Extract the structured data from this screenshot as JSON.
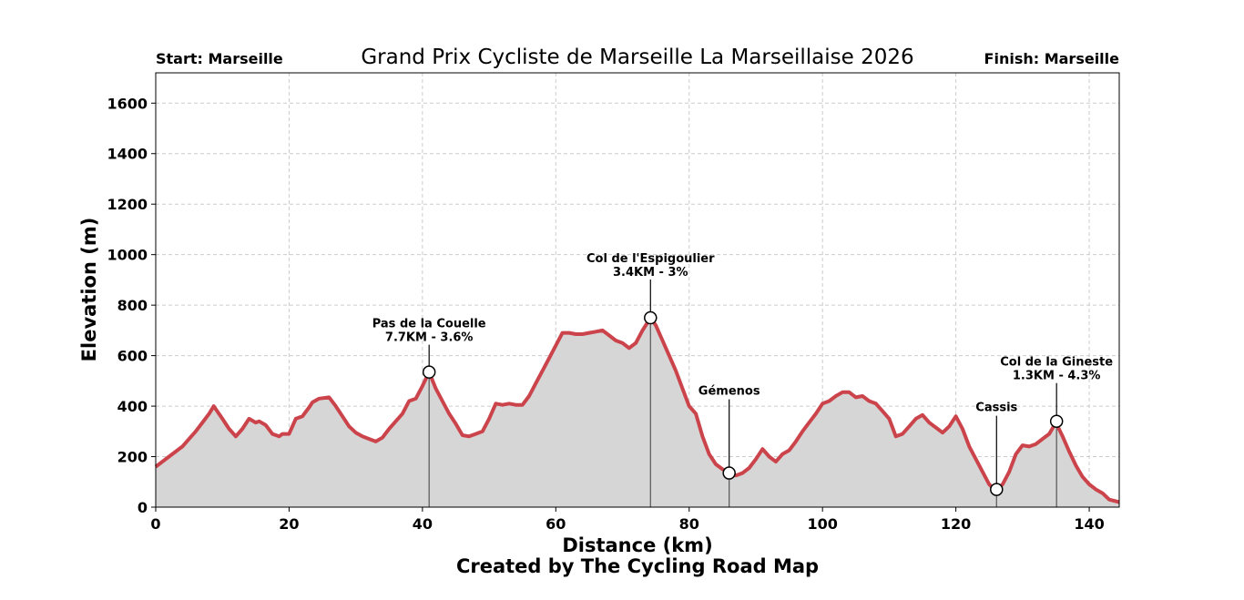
{
  "chart_data": {
    "type": "area",
    "title": "Grand Prix Cycliste de Marseille La Marseillaise 2026",
    "start_label": "Start: Marseille",
    "finish_label": "Finish: Marseille",
    "xlabel": "Distance (km)",
    "ylabel": "Elevation (m)",
    "caption": "Created by The Cycling Road Map",
    "xlim": [
      0,
      144.5
    ],
    "ylim": [
      0,
      1720
    ],
    "xticks": [
      0,
      20,
      40,
      60,
      80,
      100,
      120,
      140
    ],
    "yticks": [
      0,
      200,
      400,
      600,
      800,
      1000,
      1200,
      1400,
      1600
    ],
    "grid": true,
    "colors": {
      "line": "#cc444b",
      "fill": "#d6d6d6",
      "grid": "#cccccc"
    },
    "profile": [
      [
        0,
        160
      ],
      [
        2,
        200
      ],
      [
        4,
        240
      ],
      [
        5,
        270
      ],
      [
        6,
        300
      ],
      [
        7,
        335
      ],
      [
        8,
        370
      ],
      [
        8.7,
        400
      ],
      [
        10,
        350
      ],
      [
        11,
        310
      ],
      [
        12,
        280
      ],
      [
        13,
        310
      ],
      [
        14,
        350
      ],
      [
        15,
        335
      ],
      [
        15.5,
        340
      ],
      [
        16.5,
        325
      ],
      [
        17.5,
        290
      ],
      [
        18.5,
        280
      ],
      [
        19,
        290
      ],
      [
        20,
        290
      ],
      [
        21,
        350
      ],
      [
        22,
        360
      ],
      [
        23,
        395
      ],
      [
        23.5,
        415
      ],
      [
        24.5,
        430
      ],
      [
        26,
        435
      ],
      [
        27,
        400
      ],
      [
        28,
        360
      ],
      [
        29,
        320
      ],
      [
        30,
        295
      ],
      [
        31,
        280
      ],
      [
        32,
        270
      ],
      [
        33,
        260
      ],
      [
        34,
        275
      ],
      [
        35,
        310
      ],
      [
        36,
        340
      ],
      [
        37,
        370
      ],
      [
        38,
        420
      ],
      [
        39,
        430
      ],
      [
        40,
        480
      ],
      [
        41,
        535
      ],
      [
        42,
        470
      ],
      [
        43,
        420
      ],
      [
        44,
        370
      ],
      [
        45,
        330
      ],
      [
        46,
        285
      ],
      [
        47,
        280
      ],
      [
        48,
        290
      ],
      [
        49,
        300
      ],
      [
        50,
        350
      ],
      [
        51,
        410
      ],
      [
        52,
        405
      ],
      [
        53,
        410
      ],
      [
        54,
        405
      ],
      [
        55,
        405
      ],
      [
        56,
        440
      ],
      [
        57,
        490
      ],
      [
        58,
        540
      ],
      [
        59,
        590
      ],
      [
        60,
        640
      ],
      [
        61,
        690
      ],
      [
        62,
        690
      ],
      [
        63,
        685
      ],
      [
        64,
        685
      ],
      [
        65,
        690
      ],
      [
        66,
        695
      ],
      [
        67,
        700
      ],
      [
        68,
        680
      ],
      [
        69,
        660
      ],
      [
        70,
        650
      ],
      [
        71,
        630
      ],
      [
        72,
        650
      ],
      [
        73,
        700
      ],
      [
        74.2,
        750
      ],
      [
        75,
        720
      ],
      [
        76,
        660
      ],
      [
        77,
        600
      ],
      [
        78,
        540
      ],
      [
        79,
        470
      ],
      [
        80,
        400
      ],
      [
        81,
        370
      ],
      [
        82,
        280
      ],
      [
        83,
        210
      ],
      [
        84,
        170
      ],
      [
        85,
        150
      ],
      [
        86,
        135
      ],
      [
        87,
        125
      ],
      [
        88,
        135
      ],
      [
        89,
        155
      ],
      [
        90,
        190
      ],
      [
        91,
        230
      ],
      [
        92,
        200
      ],
      [
        93,
        180
      ],
      [
        94,
        210
      ],
      [
        95,
        225
      ],
      [
        96,
        260
      ],
      [
        97,
        300
      ],
      [
        98,
        335
      ],
      [
        99,
        370
      ],
      [
        100,
        410
      ],
      [
        101,
        420
      ],
      [
        102,
        440
      ],
      [
        103,
        455
      ],
      [
        104,
        455
      ],
      [
        105,
        435
      ],
      [
        106,
        440
      ],
      [
        107,
        420
      ],
      [
        108,
        410
      ],
      [
        109,
        380
      ],
      [
        110,
        350
      ],
      [
        111,
        280
      ],
      [
        112,
        290
      ],
      [
        113,
        320
      ],
      [
        114,
        350
      ],
      [
        115,
        365
      ],
      [
        116,
        335
      ],
      [
        117,
        315
      ],
      [
        118,
        295
      ],
      [
        119,
        320
      ],
      [
        120,
        360
      ],
      [
        121,
        310
      ],
      [
        122,
        240
      ],
      [
        123,
        190
      ],
      [
        124,
        140
      ],
      [
        125,
        90
      ],
      [
        126,
        65
      ],
      [
        127,
        90
      ],
      [
        128,
        140
      ],
      [
        129,
        210
      ],
      [
        130,
        245
      ],
      [
        131,
        240
      ],
      [
        132,
        250
      ],
      [
        133,
        270
      ],
      [
        134,
        290
      ],
      [
        135,
        335
      ],
      [
        136,
        280
      ],
      [
        137,
        220
      ],
      [
        138,
        165
      ],
      [
        139,
        120
      ],
      [
        140,
        90
      ],
      [
        141,
        70
      ],
      [
        142,
        55
      ],
      [
        143,
        30
      ],
      [
        144.5,
        20
      ]
    ],
    "annotations": [
      {
        "name": "Pas de la Couelle",
        "detail": "7.7KM - 3.6%",
        "km": 41,
        "elevation": 535
      },
      {
        "name": "Col de l'Espigoulier",
        "detail": "3.4KM - 3%",
        "km": 74.2,
        "elevation": 750
      },
      {
        "name": "Gémenos",
        "detail": "",
        "km": 86,
        "elevation": 135
      },
      {
        "name": "Cassis",
        "detail": "",
        "km": 126.1,
        "elevation": 70
      },
      {
        "name": "Col de la Gineste",
        "detail": "1.3KM - 4.3%",
        "km": 135.1,
        "elevation": 340
      }
    ]
  }
}
